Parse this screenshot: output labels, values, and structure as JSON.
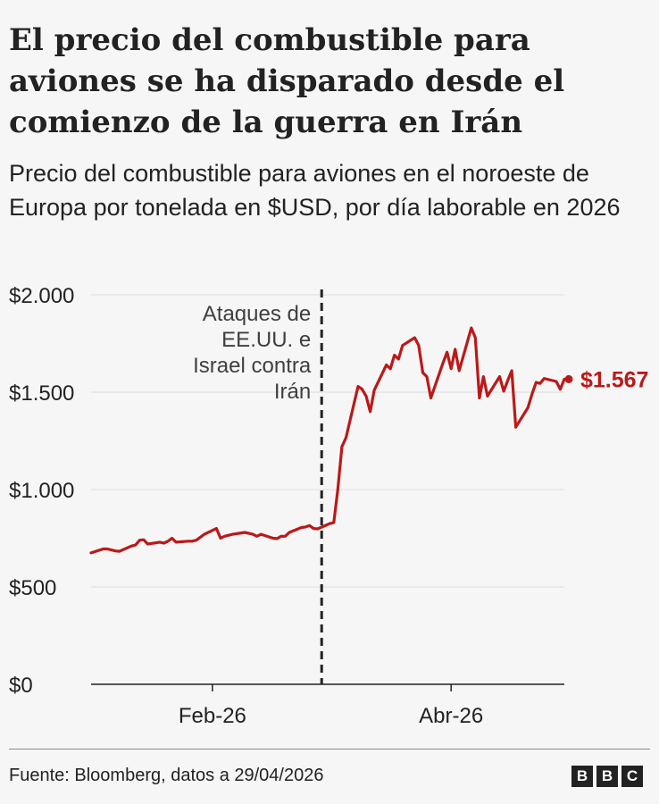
{
  "title": "El precio del combustible para aviones se ha disparado desde el comienzo de la guerra en Irán",
  "subtitle": "Precio del combustible para aviones en el noroeste de Europa por tonelada en $USD, por día laborable en 2026",
  "source": "Fuente: Bloomberg, datos a 29/04/2026",
  "logo": {
    "letters": [
      "B",
      "B",
      "C"
    ]
  },
  "colors": {
    "line": "#bb1919",
    "text": "#222222",
    "grid": "#dddddd",
    "annotation": "#3f3f42"
  },
  "chart_data": {
    "type": "line",
    "title": "El precio del combustible para aviones se ha disparado desde el comienzo de la guerra en Irán",
    "subtitle": "Precio del combustible para aviones en el noroeste de Europa por tonelada en $USD, por día laborable en 2026",
    "xlabel": "",
    "ylabel": "",
    "ylim": [
      0,
      2000
    ],
    "yticks": [
      0,
      500,
      1000,
      1500,
      2000
    ],
    "ytick_labels": [
      "$0",
      "$500",
      "$1.000",
      "$1.500",
      "$2.000"
    ],
    "xlim": [
      "2026-01-02",
      "2026-04-29"
    ],
    "xticks": [
      {
        "date": "2026-02-01",
        "label": "Feb-26"
      },
      {
        "date": "2026-04-01",
        "label": "Abr-26"
      }
    ],
    "grid": true,
    "series": [
      {
        "color": "#bb1919",
        "points": [
          [
            "2026-01-02",
            675
          ],
          [
            "2026-01-05",
            695
          ],
          [
            "2026-01-06",
            695
          ],
          [
            "2026-01-07",
            690
          ],
          [
            "2026-01-08",
            685
          ],
          [
            "2026-01-09",
            683
          ],
          [
            "2026-01-12",
            710
          ],
          [
            "2026-01-13",
            715
          ],
          [
            "2026-01-14",
            740
          ],
          [
            "2026-01-15",
            742
          ],
          [
            "2026-01-16",
            720
          ],
          [
            "2026-01-19",
            730
          ],
          [
            "2026-01-20",
            725
          ],
          [
            "2026-01-21",
            735
          ],
          [
            "2026-01-22",
            750
          ],
          [
            "2026-01-23",
            730
          ],
          [
            "2026-01-26",
            735
          ],
          [
            "2026-01-27",
            735
          ],
          [
            "2026-01-28",
            740
          ],
          [
            "2026-01-29",
            755
          ],
          [
            "2026-01-30",
            770
          ],
          [
            "2026-02-02",
            800
          ],
          [
            "2026-02-03",
            750
          ],
          [
            "2026-02-04",
            760
          ],
          [
            "2026-02-05",
            765
          ],
          [
            "2026-02-06",
            770
          ],
          [
            "2026-02-09",
            780
          ],
          [
            "2026-02-10",
            775
          ],
          [
            "2026-02-11",
            770
          ],
          [
            "2026-02-12",
            760
          ],
          [
            "2026-02-13",
            770
          ],
          [
            "2026-02-16",
            750
          ],
          [
            "2026-02-17",
            748
          ],
          [
            "2026-02-18",
            760
          ],
          [
            "2026-02-19",
            760
          ],
          [
            "2026-02-20",
            780
          ],
          [
            "2026-02-23",
            805
          ],
          [
            "2026-02-24",
            808
          ],
          [
            "2026-02-25",
            815
          ],
          [
            "2026-02-26",
            800
          ],
          [
            "2026-02-27",
            798
          ],
          [
            "2026-03-02",
            825
          ],
          [
            "2026-03-03",
            830
          ],
          [
            "2026-03-04",
            1000
          ],
          [
            "2026-03-05",
            1220
          ],
          [
            "2026-03-06",
            1265
          ],
          [
            "2026-03-09",
            1530
          ],
          [
            "2026-03-10",
            1515
          ],
          [
            "2026-03-11",
            1480
          ],
          [
            "2026-03-12",
            1400
          ],
          [
            "2026-03-13",
            1510
          ],
          [
            "2026-03-16",
            1640
          ],
          [
            "2026-03-17",
            1620
          ],
          [
            "2026-03-18",
            1690
          ],
          [
            "2026-03-19",
            1670
          ],
          [
            "2026-03-20",
            1740
          ],
          [
            "2026-03-23",
            1780
          ],
          [
            "2026-03-24",
            1740
          ],
          [
            "2026-03-25",
            1600
          ],
          [
            "2026-03-26",
            1580
          ],
          [
            "2026-03-27",
            1470
          ],
          [
            "2026-03-30",
            1650
          ],
          [
            "2026-03-31",
            1705
          ],
          [
            "2026-04-01",
            1620
          ],
          [
            "2026-04-02",
            1720
          ],
          [
            "2026-04-03",
            1610
          ],
          [
            "2026-04-06",
            1830
          ],
          [
            "2026-04-07",
            1780
          ],
          [
            "2026-04-08",
            1470
          ],
          [
            "2026-04-09",
            1580
          ],
          [
            "2026-04-10",
            1480
          ],
          [
            "2026-04-13",
            1580
          ],
          [
            "2026-04-14",
            1505
          ],
          [
            "2026-04-15",
            1560
          ],
          [
            "2026-04-16",
            1610
          ],
          [
            "2026-04-17",
            1320
          ],
          [
            "2026-04-20",
            1420
          ],
          [
            "2026-04-21",
            1490
          ],
          [
            "2026-04-22",
            1550
          ],
          [
            "2026-04-23",
            1545
          ],
          [
            "2026-04-24",
            1570
          ],
          [
            "2026-04-27",
            1555
          ],
          [
            "2026-04-28",
            1515
          ],
          [
            "2026-04-29",
            1567
          ]
        ]
      }
    ],
    "end_label": {
      "text": "$1.567",
      "value": 1567
    },
    "annotations": [
      {
        "date": "2026-02-28",
        "text_lines": [
          "Ataques de",
          "EE.UU. e",
          "Israel contra",
          "Irán"
        ],
        "style": "dashed-vertical-line"
      }
    ]
  }
}
